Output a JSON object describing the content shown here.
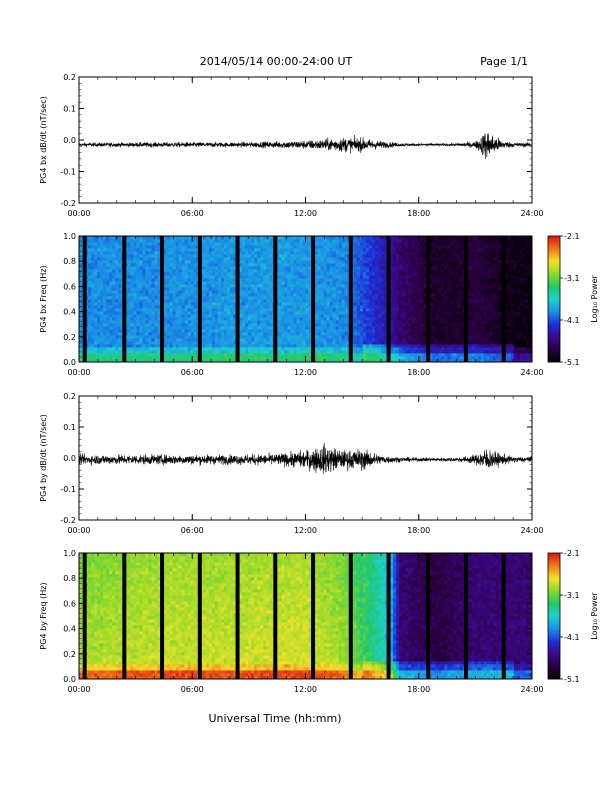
{
  "header": {
    "date_range": "2014/05/14  00:00-24:00 UT",
    "page": "Page 1/1"
  },
  "xlabel": "Universal Time (hh:mm)",
  "colorbar_unit": "Log₁₀ Power",
  "colors": {
    "colormap": [
      "#000000",
      "#2b0040",
      "#3a0a8c",
      "#1e2fd6",
      "#1a8fe6",
      "#1fd0d0",
      "#22c86a",
      "#8ad82c",
      "#f2e22a",
      "#f27a18",
      "#d81818"
    ]
  },
  "chart_data": [
    {
      "id": "bx-dbdt",
      "type": "line",
      "ylabel": "PG4 bx dB/dt (nT/sec)",
      "xlim": [
        0,
        24
      ],
      "ylim": [
        -0.2,
        0.2
      ],
      "x_ticks": [
        "00:00",
        "06:00",
        "12:00",
        "18:00",
        "24:00"
      ],
      "y_ticks": [
        "-0.2",
        "-0.1",
        "0.0",
        "0.1",
        "0.2"
      ],
      "baseline": -0.015,
      "amplitude_envelope": {
        "hours": [
          0,
          2,
          4,
          6,
          8,
          10,
          11,
          12,
          13,
          14,
          15,
          16,
          17,
          18,
          19,
          20,
          21,
          21.6,
          22,
          22.5,
          23,
          24
        ],
        "half_range": [
          0.006,
          0.007,
          0.008,
          0.008,
          0.008,
          0.01,
          0.012,
          0.014,
          0.018,
          0.024,
          0.022,
          0.012,
          0.006,
          0.004,
          0.004,
          0.005,
          0.01,
          0.05,
          0.03,
          0.012,
          0.008,
          0.006
        ]
      }
    },
    {
      "id": "bx-spectrogram",
      "type": "heatmap",
      "ylabel": "PG4 bx Freq (Hz)",
      "xlim": [
        0,
        24
      ],
      "ylim": [
        0,
        1
      ],
      "x_ticks": [
        "00:00",
        "06:00",
        "12:00",
        "18:00",
        "24:00"
      ],
      "y_ticks": [
        "0.0",
        "0.2",
        "0.4",
        "0.6",
        "0.8",
        "1.0"
      ],
      "colorbar": {
        "min": -5.1,
        "max": -2.1,
        "ticks": [
          "-2.1",
          "-3.1",
          "-4.1",
          "-5.1"
        ]
      },
      "gap_hours": [
        0.3,
        2.4,
        4.4,
        6.4,
        8.4,
        10.4,
        12.4,
        14.4,
        16.4,
        18.5,
        20.5,
        22.5
      ],
      "power_profile": {
        "hours": [
          0,
          4,
          8,
          12,
          14,
          15,
          16,
          17,
          18,
          19,
          20,
          21,
          22,
          23,
          24
        ],
        "log_power": [
          -3.9,
          -3.9,
          -3.85,
          -3.85,
          -3.9,
          -4.1,
          -4.3,
          -4.6,
          -4.8,
          -4.9,
          -4.9,
          -4.8,
          -4.9,
          -5.0,
          -5.0
        ]
      }
    },
    {
      "id": "by-dbdt",
      "type": "line",
      "ylabel": "PG4 by dB/dt (nT/sec)",
      "xlim": [
        0,
        24
      ],
      "ylim": [
        -0.2,
        0.2
      ],
      "x_ticks": [
        "00:00",
        "06:00",
        "12:00",
        "18:00",
        "24:00"
      ],
      "y_ticks": [
        "-0.2",
        "-0.1",
        "0.0",
        "0.1",
        "0.2"
      ],
      "baseline": -0.005,
      "amplitude_envelope": {
        "hours": [
          0,
          2,
          4,
          6,
          8,
          10,
          11,
          12,
          13,
          13.5,
          14,
          15,
          16,
          17,
          18,
          19,
          20,
          21,
          21.6,
          22,
          23,
          24
        ],
        "half_range": [
          0.016,
          0.016,
          0.016,
          0.016,
          0.016,
          0.018,
          0.022,
          0.03,
          0.05,
          0.04,
          0.03,
          0.035,
          0.015,
          0.008,
          0.006,
          0.006,
          0.007,
          0.015,
          0.04,
          0.025,
          0.01,
          0.008
        ]
      }
    },
    {
      "id": "by-spectrogram",
      "type": "heatmap",
      "ylabel": "PG4 by Freq (Hz)",
      "xlim": [
        0,
        24
      ],
      "ylim": [
        0,
        1
      ],
      "x_ticks": [
        "00:00",
        "06:00",
        "12:00",
        "18:00",
        "24:00"
      ],
      "y_ticks": [
        "0.0",
        "0.2",
        "0.4",
        "0.6",
        "0.8",
        "1.0"
      ],
      "colorbar": {
        "min": -5.1,
        "max": -2.1,
        "ticks": [
          "-2.1",
          "-3.1",
          "-4.1",
          "-5.1"
        ]
      },
      "gap_hours": [
        0.3,
        2.4,
        4.4,
        6.4,
        8.4,
        10.4,
        12.4,
        14.4,
        16.4,
        18.5,
        20.5,
        22.5
      ],
      "power_profile": {
        "hours": [
          0,
          4,
          8,
          12,
          14,
          15,
          16,
          16.5,
          17,
          18,
          19,
          20,
          21,
          22,
          23,
          24
        ],
        "log_power": [
          -2.9,
          -2.8,
          -2.8,
          -2.75,
          -2.9,
          -3.2,
          -3.5,
          -3.7,
          -4.6,
          -4.7,
          -4.8,
          -4.7,
          -4.6,
          -4.6,
          -4.6,
          -4.6
        ]
      }
    }
  ]
}
